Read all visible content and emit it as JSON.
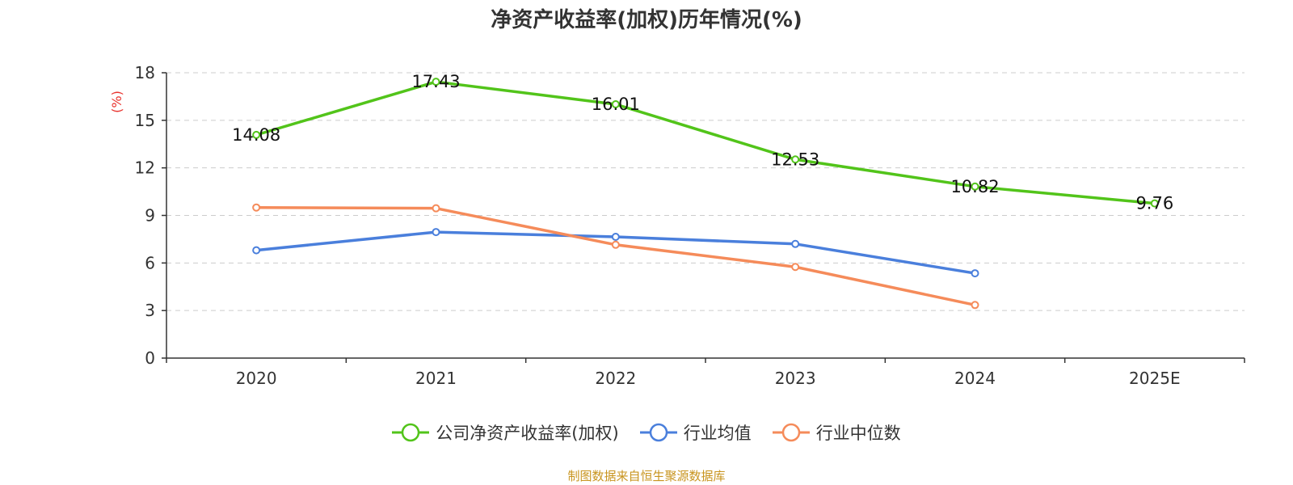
{
  "chart_data": {
    "type": "line",
    "title": "净资产收益率(加权)历年情况(%)",
    "ylabel": "(%)",
    "xlabel": "",
    "categories": [
      "2020",
      "2021",
      "2022",
      "2023",
      "2024",
      "2025E"
    ],
    "ylim": [
      0,
      18
    ],
    "yticks": [
      0,
      3,
      6,
      9,
      12,
      15,
      18
    ],
    "grid": true,
    "legend_position": "bottom",
    "series": [
      {
        "name": "公司净资产收益率(加权)",
        "color": "#52c41a",
        "values": [
          14.08,
          17.43,
          16.01,
          12.53,
          10.82,
          9.76
        ],
        "labels": [
          "14.08",
          "17.43",
          "16.01",
          "12.53",
          "10.82",
          "9.76"
        ]
      },
      {
        "name": "行业均值",
        "color": "#4a7fdc",
        "values": [
          6.8,
          7.95,
          7.65,
          7.2,
          5.35,
          null
        ]
      },
      {
        "name": "行业中位数",
        "color": "#f58b5a",
        "values": [
          9.5,
          9.45,
          7.15,
          5.75,
          3.35,
          null
        ]
      }
    ]
  },
  "source": {
    "text": "制图数据来自恒生聚源数据库",
    "color": "#c8941e"
  },
  "colors": {
    "ylabel": "#e8322d",
    "axis": "#333333",
    "grid": "#cccccc"
  }
}
